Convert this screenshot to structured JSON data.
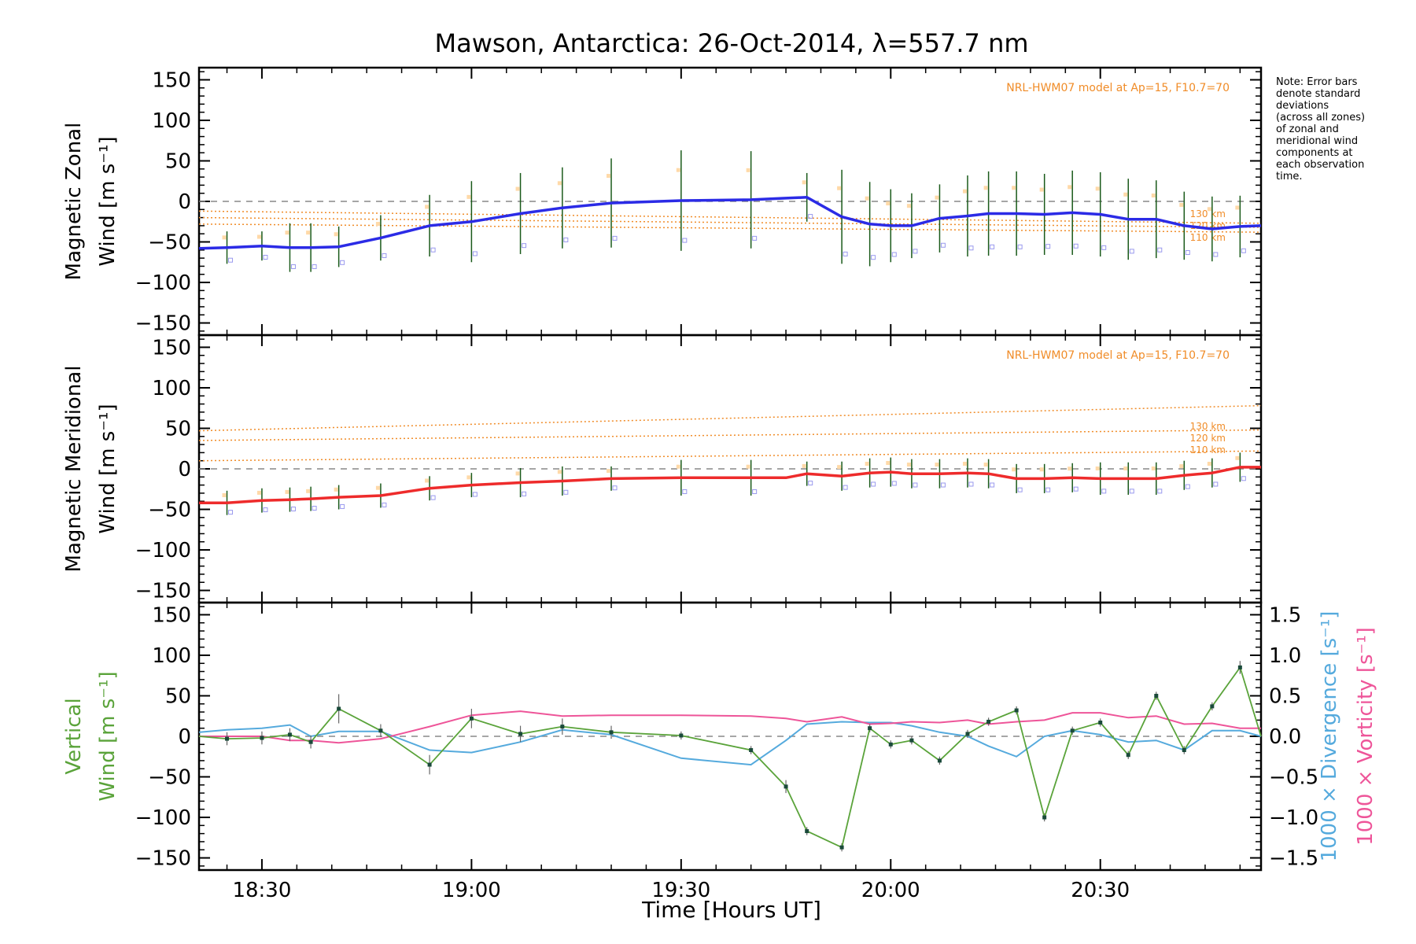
{
  "chart_data": {
    "title": "Mawson, Antarctica: 26-Oct-2014, λ=557.7 nm",
    "x_unit": "UT time",
    "xlabel": "Time [Hours UT]",
    "xlim": [
      "18:21",
      "20:53"
    ],
    "x_tick_labels": [
      "18:30",
      "19:00",
      "19:30",
      "20:00",
      "20:30"
    ],
    "y_tick_labels": [
      "150",
      "100",
      "50",
      "0",
      "−50",
      "−100",
      "−150"
    ],
    "right_tick_labels": [
      "1.5",
      "1.0",
      "0.5",
      "0.0",
      "−0.5",
      "−1.0",
      "−1.5"
    ],
    "note": [
      "Note: Error bars",
      "denote standard",
      "deviations",
      "(across all zones)",
      "of zonal and",
      "meridional wind",
      "components at",
      "each observation",
      "time."
    ],
    "colors": {
      "zonal": "#2b2be6",
      "meridional": "#ee2b2b",
      "vertical": "#5aa33a",
      "divergence": "#55aadd",
      "vorticity": "#ee5599",
      "model": "#f08c28",
      "errorbar": "#1a5a1a"
    },
    "panels": [
      {
        "type": "line",
        "ylabel_line1": "Magnetic Zonal",
        "ylabel_line2": "Wind [m s⁻¹]",
        "ylim": [
          -165,
          165
        ],
        "model_label": "NRL-HWM07 model at Ap=15, F10.7=70",
        "model_heights": [
          "130 km",
          "120 km",
          "110 km"
        ],
        "model_lines": [
          {
            "start": -12,
            "end": -27
          },
          {
            "start": -20,
            "end": -32
          },
          {
            "start": -28,
            "end": -38
          }
        ],
        "series": {
          "name": "zonal",
          "x": [
            "18:21",
            "18:25",
            "18:30",
            "18:34",
            "18:37",
            "18:41",
            "18:47",
            "18:54",
            "19:00",
            "19:07",
            "19:13",
            "19:20",
            "19:30",
            "19:40",
            "19:45",
            "19:48",
            "19:53",
            "19:57",
            "20:00",
            "20:03",
            "20:07",
            "20:11",
            "20:14",
            "20:18",
            "20:22",
            "20:26",
            "20:30",
            "20:34",
            "20:38",
            "20:42",
            "20:46",
            "20:50",
            "20:53"
          ],
          "y": [
            -58,
            -57,
            -55,
            -57,
            -57,
            -56,
            -45,
            -30,
            -25,
            -15,
            -8,
            -2,
            1,
            2,
            4,
            5,
            -19,
            -28,
            -30,
            -30,
            -21,
            -18,
            -15,
            -15,
            -16,
            -14,
            -16,
            -22,
            -22,
            -30,
            -34,
            -31,
            -30
          ],
          "err": [
            0,
            20,
            18,
            30,
            30,
            25,
            28,
            38,
            50,
            50,
            50,
            55,
            62,
            60,
            0,
            30,
            58,
            52,
            45,
            40,
            42,
            50,
            52,
            52,
            50,
            52,
            52,
            50,
            48,
            42,
            40,
            38,
            0
          ]
        }
      },
      {
        "type": "line",
        "ylabel_line1": "Magnetic Meridional",
        "ylabel_line2": "Wind [m s⁻¹]",
        "ylim": [
          -165,
          165
        ],
        "model_label": "NRL-HWM07 model at Ap=15, F10.7=70",
        "model_heights": [
          "130 km",
          "120 km",
          "110 km"
        ],
        "model_lines": [
          {
            "start": 47,
            "end": 78
          },
          {
            "start": 35,
            "end": 48
          },
          {
            "start": 10,
            "end": 22
          }
        ],
        "series": {
          "name": "meridional",
          "x": [
            "18:21",
            "18:25",
            "18:30",
            "18:34",
            "18:37",
            "18:41",
            "18:47",
            "18:54",
            "19:00",
            "19:07",
            "19:13",
            "19:20",
            "19:30",
            "19:40",
            "19:45",
            "19:48",
            "19:53",
            "19:57",
            "20:00",
            "20:03",
            "20:07",
            "20:11",
            "20:14",
            "20:18",
            "20:22",
            "20:26",
            "20:30",
            "20:34",
            "20:38",
            "20:42",
            "20:46",
            "20:50",
            "20:53"
          ],
          "y": [
            -42,
            -42,
            -39,
            -38,
            -37,
            -35,
            -33,
            -24,
            -20,
            -17,
            -15,
            -12,
            -11,
            -11,
            -11,
            -6,
            -9,
            -5,
            -4,
            -6,
            -6,
            -5,
            -6,
            -12,
            -12,
            -11,
            -12,
            -12,
            -12,
            -8,
            -5,
            2,
            2
          ],
          "err": [
            0,
            15,
            15,
            15,
            15,
            15,
            15,
            15,
            15,
            18,
            18,
            15,
            22,
            22,
            0,
            15,
            18,
            18,
            18,
            18,
            18,
            18,
            18,
            18,
            18,
            18,
            20,
            20,
            20,
            18,
            18,
            18,
            0
          ]
        }
      },
      {
        "type": "line",
        "ylabel_line1": "Vertical",
        "ylabel_line2": "Wind [m s⁻¹]",
        "right_label_div": "1000 × Divergence [s⁻¹]",
        "right_label_vor": "1000 × Vorticity [s⁻¹]",
        "ylim": [
          -165,
          165
        ],
        "right_ylim": [
          -1.65,
          1.65
        ],
        "vertical": {
          "x": [
            "18:21",
            "18:25",
            "18:30",
            "18:34",
            "18:37",
            "18:41",
            "18:47",
            "18:54",
            "19:00",
            "19:07",
            "19:13",
            "19:20",
            "19:30",
            "19:40",
            "19:45",
            "19:48",
            "19:53",
            "19:57",
            "20:00",
            "20:03",
            "20:07",
            "20:11",
            "20:14",
            "20:18",
            "20:22",
            "20:26",
            "20:30",
            "20:34",
            "20:38",
            "20:42",
            "20:46",
            "20:50",
            "20:53"
          ],
          "y": [
            0,
            -3,
            -2,
            2,
            -7,
            34,
            7,
            -35,
            22,
            3,
            12,
            5,
            1,
            -17,
            -62,
            -117,
            -137,
            10,
            -10,
            -5,
            -30,
            3,
            18,
            32,
            -100,
            7,
            17,
            -23,
            50,
            -17,
            37,
            85,
            0
          ],
          "err": [
            0,
            8,
            8,
            8,
            8,
            18,
            8,
            12,
            12,
            10,
            10,
            8,
            5,
            5,
            8,
            5,
            5,
            5,
            5,
            5,
            5,
            5,
            5,
            5,
            5,
            5,
            5,
            5,
            5,
            5,
            5,
            8,
            0
          ]
        },
        "divergence": {
          "x": [
            "18:21",
            "18:25",
            "18:30",
            "18:34",
            "18:37",
            "18:41",
            "18:47",
            "18:54",
            "19:00",
            "19:07",
            "19:13",
            "19:20",
            "19:30",
            "19:40",
            "19:45",
            "19:48",
            "19:53",
            "19:57",
            "20:00",
            "20:03",
            "20:07",
            "20:11",
            "20:14",
            "20:18",
            "20:22",
            "20:26",
            "20:30",
            "20:34",
            "20:38",
            "20:42",
            "20:46",
            "20:50",
            "20:53"
          ],
          "y": [
            0.05,
            0.08,
            0.1,
            0.14,
            0.0,
            0.06,
            0.06,
            -0.17,
            -0.2,
            -0.07,
            0.08,
            0.02,
            -0.27,
            -0.35,
            -0.05,
            0.15,
            0.18,
            0.17,
            0.17,
            0.13,
            0.05,
            0.0,
            -0.12,
            -0.25,
            0.0,
            0.07,
            0.02,
            -0.07,
            -0.05,
            -0.17,
            0.07,
            0.07,
            0.0
          ]
        },
        "vorticity": {
          "x": [
            "18:21",
            "18:25",
            "18:30",
            "18:34",
            "18:37",
            "18:41",
            "18:47",
            "18:54",
            "19:00",
            "19:07",
            "19:13",
            "19:20",
            "19:30",
            "19:40",
            "19:45",
            "19:48",
            "19:53",
            "19:57",
            "20:00",
            "20:03",
            "20:07",
            "20:11",
            "20:14",
            "20:18",
            "20:22",
            "20:26",
            "20:30",
            "20:34",
            "20:38",
            "20:42",
            "20:46",
            "20:50",
            "20:53"
          ],
          "y": [
            0.0,
            0.0,
            0.0,
            -0.05,
            -0.05,
            -0.08,
            -0.03,
            0.12,
            0.26,
            0.31,
            0.25,
            0.26,
            0.26,
            0.25,
            0.22,
            0.18,
            0.24,
            0.15,
            0.16,
            0.18,
            0.17,
            0.2,
            0.15,
            0.18,
            0.2,
            0.29,
            0.29,
            0.23,
            0.25,
            0.15,
            0.16,
            0.1,
            0.1
          ]
        }
      }
    ]
  }
}
